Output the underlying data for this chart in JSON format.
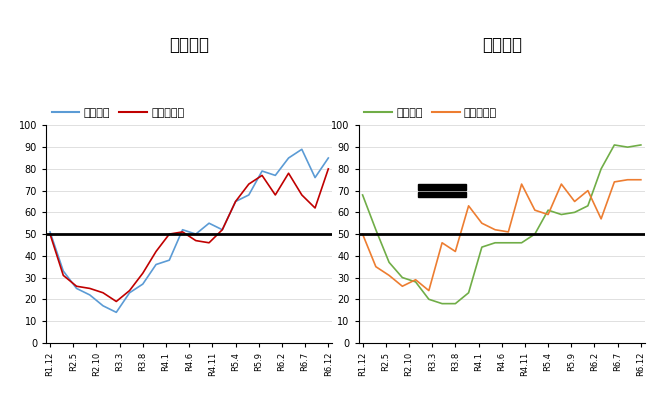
{
  "title_left": "需給ＤＩ",
  "title_right": "価格ＤＩ",
  "legend_current": "現状ＤＩ",
  "legend_outlook": "見通しＤＩ",
  "xlabels": [
    "R1.12",
    "R2.5",
    "R2.10",
    "R3.3",
    "R3.8",
    "R4.1",
    "R4.6",
    "R4.11",
    "R5.4",
    "R5.9",
    "R6.2",
    "R6.7",
    "R6.12"
  ],
  "ylim": [
    0,
    100
  ],
  "yticks": [
    0,
    10,
    20,
    30,
    40,
    50,
    60,
    70,
    80,
    90,
    100
  ],
  "hline": 50,
  "left_current_color": "#5B9BD5",
  "left_outlook_color": "#C00000",
  "right_current_color": "#70AD47",
  "right_outlook_color": "#ED7D31",
  "left_current": [
    51,
    33,
    25,
    22,
    17,
    14,
    23,
    27,
    36,
    38,
    52,
    50,
    55,
    52,
    65,
    68,
    79,
    77,
    85,
    89,
    76,
    85
  ],
  "left_outlook": [
    50,
    31,
    26,
    25,
    23,
    19,
    24,
    32,
    42,
    50,
    51,
    47,
    46,
    52,
    65,
    73,
    77,
    68,
    78,
    68,
    62,
    80
  ],
  "right_current": [
    68,
    52,
    37,
    30,
    28,
    20,
    18,
    18,
    23,
    44,
    46,
    46,
    46,
    50,
    61,
    59,
    60,
    63,
    80,
    91,
    90,
    91
  ],
  "right_outlook": [
    50,
    35,
    31,
    26,
    29,
    24,
    46,
    42,
    63,
    55,
    52,
    51,
    73,
    61,
    59,
    73,
    65,
    70,
    57,
    74,
    75,
    75
  ],
  "n_points": 22,
  "background_color": "#FFFFFF",
  "grid_color": "#D3D3D3",
  "title_fontsize": 12,
  "legend_fontsize": 8,
  "tick_fontsize": 7,
  "xtick_fontsize": 6
}
